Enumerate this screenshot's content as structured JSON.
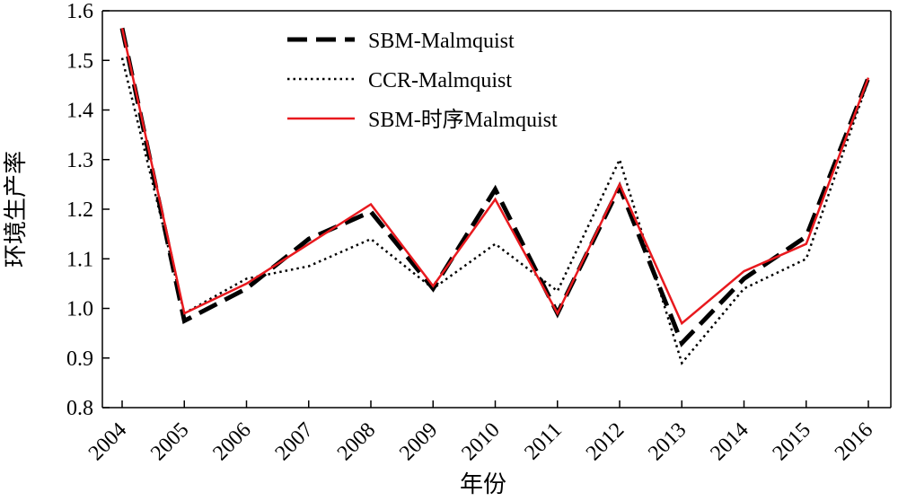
{
  "chart_data": {
    "type": "line",
    "title": "",
    "xlabel": "年份",
    "ylabel": "环境生产率",
    "categories": [
      "2004",
      "2005",
      "2006",
      "2007",
      "2008",
      "2009",
      "2010",
      "2011",
      "2012",
      "2013",
      "2014",
      "2015",
      "2016"
    ],
    "ylim": [
      0.8,
      1.6
    ],
    "yticks": [
      "0.8",
      "0.9",
      "1.0",
      "1.1",
      "1.2",
      "1.3",
      "1.4",
      "1.5",
      "1.6"
    ],
    "grid": false,
    "legend_position": "top-center",
    "series": [
      {
        "name": "SBM-Malmquist",
        "style": "dashed",
        "color": "#000000",
        "values": [
          1.565,
          0.975,
          1.04,
          1.14,
          1.195,
          1.04,
          1.24,
          0.99,
          1.245,
          0.93,
          1.06,
          1.145,
          1.465
        ]
      },
      {
        "name": "CCR-Malmquist",
        "style": "dotted",
        "color": "#000000",
        "values": [
          1.505,
          0.99,
          1.06,
          1.085,
          1.14,
          1.04,
          1.13,
          1.035,
          1.3,
          0.89,
          1.04,
          1.1,
          1.46
        ]
      },
      {
        "name": "SBM-时序Malmquist",
        "style": "solid",
        "color": "#e8191e",
        "values": [
          1.565,
          0.99,
          1.05,
          1.13,
          1.21,
          1.045,
          1.22,
          0.99,
          1.25,
          0.97,
          1.075,
          1.13,
          1.465
        ]
      }
    ]
  }
}
